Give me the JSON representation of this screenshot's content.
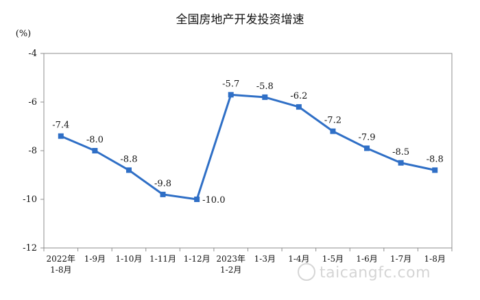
{
  "chart_data": {
    "type": "line",
    "title": "全国房地产开发投资增速",
    "ylabel": "(%)",
    "ylim": [
      -12,
      -4
    ],
    "yticks": [
      -4,
      -6,
      -8,
      -10,
      -12
    ],
    "categories": [
      [
        "2022年",
        "1-8月"
      ],
      [
        "1-9月"
      ],
      [
        "1-10月"
      ],
      [
        "1-11月"
      ],
      [
        "1-12月"
      ],
      [
        "2023年",
        "1-2月"
      ],
      [
        "1-3月"
      ],
      [
        "1-4月"
      ],
      [
        "1-5月"
      ],
      [
        "1-6月"
      ],
      [
        "1-7月"
      ],
      [
        "1-8月"
      ]
    ],
    "values": [
      -7.4,
      -8.0,
      -8.8,
      -9.8,
      -10.0,
      -5.7,
      -5.8,
      -6.2,
      -7.2,
      -7.9,
      -8.5,
      -8.8
    ],
    "data_labels": [
      "-7.4",
      "-8.0",
      "-8.8",
      "-9.8",
      "-10.0",
      "-5.7",
      "-5.8",
      "-6.2",
      "-7.2",
      "-7.9",
      "-8.5",
      "-8.8"
    ],
    "grid": false,
    "line_color": "#2f6fc6",
    "axis_color": "#8c8c8c"
  },
  "watermark": {
    "text": "taicangfc.com"
  }
}
